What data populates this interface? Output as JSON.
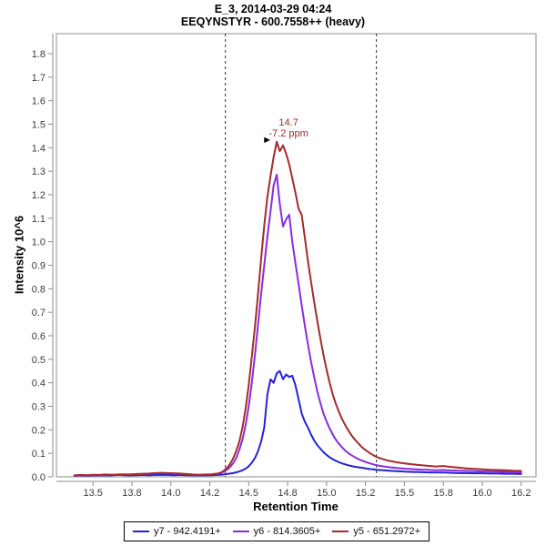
{
  "header": {
    "line1": "E_3, 2014-03-29 04:24",
    "line2": "EEQYNSTYR - 600.7558++ (heavy)"
  },
  "colors": {
    "frame": "#8d8d8d",
    "tick_text": "#3c3c3c",
    "boundary_line": "#303030",
    "legend_border": "#000000",
    "title_text": "#000000"
  },
  "chart_data": {
    "type": "line",
    "title": "E_3, 2014-03-29 04:24",
    "subtitle": "EEQYNSTYR - 600.7558++ (heavy)",
    "xlabel": "Retention Time",
    "ylabel": "Intensity 10^6",
    "xlim": [
      13.265,
      16.345
    ],
    "ylim": [
      0,
      1.885
    ],
    "grid": false,
    "legend_position": "bottom",
    "x_ticks": {
      "values": [
        13.5,
        13.75,
        14.0,
        14.25,
        14.5,
        14.75,
        15.0,
        15.25,
        15.5,
        15.75,
        16.0,
        16.25
      ],
      "labels": [
        "13.5",
        "13.8",
        "14.0",
        "14.2",
        "14.5",
        "14.8",
        "15.0",
        "15.2",
        "15.5",
        "15.8",
        "16.0",
        "16.2"
      ]
    },
    "y_ticks": {
      "values": [
        0.0,
        0.1,
        0.2,
        0.3,
        0.4,
        0.5,
        0.6,
        0.7,
        0.8,
        0.9,
        1.0,
        1.1,
        1.2,
        1.3,
        1.4,
        1.5,
        1.6,
        1.7,
        1.8
      ],
      "labels": [
        "0.0",
        "0.1",
        "0.2",
        "0.3",
        "0.4",
        "0.5",
        "0.6",
        "0.7",
        "0.8",
        "0.9",
        "1.0",
        "1.1",
        "1.2",
        "1.3",
        "1.4",
        "1.5",
        "1.6",
        "1.7",
        "1.8"
      ]
    },
    "integration_boundaries": [
      14.35,
      15.32
    ],
    "annotation": {
      "rt_label": "14.7",
      "ppm_label": "-7.2 ppm",
      "arrow_glyph": "►",
      "apex_rt": 14.68,
      "apex_intensity": 1.425,
      "color": "#A52A2A"
    },
    "x": [
      13.38,
      13.42,
      13.46,
      13.5,
      13.54,
      13.58,
      13.62,
      13.66,
      13.7,
      13.74,
      13.78,
      13.82,
      13.86,
      13.9,
      13.94,
      13.98,
      14.02,
      14.06,
      14.1,
      14.14,
      14.18,
      14.22,
      14.26,
      14.3,
      14.32,
      14.34,
      14.36,
      14.38,
      14.4,
      14.42,
      14.44,
      14.46,
      14.48,
      14.5,
      14.52,
      14.54,
      14.56,
      14.58,
      14.6,
      14.62,
      14.64,
      14.66,
      14.68,
      14.7,
      14.72,
      14.74,
      14.76,
      14.78,
      14.8,
      14.82,
      14.84,
      14.86,
      14.88,
      14.9,
      14.92,
      14.94,
      14.96,
      14.98,
      15.0,
      15.02,
      15.04,
      15.06,
      15.08,
      15.1,
      15.12,
      15.14,
      15.16,
      15.18,
      15.2,
      15.22,
      15.24,
      15.26,
      15.28,
      15.3,
      15.32,
      15.34,
      15.36,
      15.38,
      15.4,
      15.45,
      15.5,
      15.55,
      15.6,
      15.65,
      15.7,
      15.75,
      15.8,
      15.85,
      15.9,
      15.95,
      16.0,
      16.05,
      16.1,
      16.15,
      16.2,
      16.25
    ],
    "series": [
      {
        "id": "y7",
        "name": "y7 - 942.4191+",
        "color": "#2222DD",
        "values": [
          0.005,
          0.006,
          0.005,
          0.007,
          0.006,
          0.007,
          0.006,
          0.008,
          0.007,
          0.006,
          0.007,
          0.008,
          0.007,
          0.008,
          0.009,
          0.008,
          0.007,
          0.008,
          0.007,
          0.006,
          0.007,
          0.006,
          0.007,
          0.008,
          0.009,
          0.01,
          0.012,
          0.014,
          0.016,
          0.019,
          0.023,
          0.028,
          0.035,
          0.045,
          0.06,
          0.08,
          0.11,
          0.15,
          0.21,
          0.35,
          0.415,
          0.4,
          0.44,
          0.45,
          0.415,
          0.435,
          0.425,
          0.43,
          0.39,
          0.33,
          0.27,
          0.235,
          0.21,
          0.18,
          0.155,
          0.135,
          0.12,
          0.105,
          0.093,
          0.083,
          0.075,
          0.068,
          0.062,
          0.057,
          0.053,
          0.049,
          0.046,
          0.043,
          0.041,
          0.039,
          0.037,
          0.035,
          0.033,
          0.032,
          0.03,
          0.029,
          0.028,
          0.027,
          0.026,
          0.024,
          0.022,
          0.021,
          0.02,
          0.019,
          0.018,
          0.018,
          0.017,
          0.016,
          0.016,
          0.015,
          0.015,
          0.014,
          0.014,
          0.013,
          0.013,
          0.012
        ]
      },
      {
        "id": "y6",
        "name": "y6 - 814.3605+",
        "color": "#8A2BE2",
        "values": [
          0.005,
          0.006,
          0.006,
          0.007,
          0.007,
          0.008,
          0.008,
          0.009,
          0.009,
          0.01,
          0.011,
          0.012,
          0.013,
          0.015,
          0.016,
          0.015,
          0.014,
          0.013,
          0.011,
          0.009,
          0.008,
          0.009,
          0.01,
          0.012,
          0.016,
          0.022,
          0.03,
          0.042,
          0.058,
          0.08,
          0.115,
          0.16,
          0.22,
          0.3,
          0.4,
          0.52,
          0.65,
          0.78,
          0.9,
          1.02,
          1.13,
          1.24,
          1.285,
          1.16,
          1.065,
          1.095,
          1.115,
          1.0,
          0.91,
          0.82,
          0.73,
          0.645,
          0.565,
          0.49,
          0.425,
          0.365,
          0.315,
          0.27,
          0.235,
          0.205,
          0.18,
          0.158,
          0.14,
          0.125,
          0.112,
          0.101,
          0.092,
          0.084,
          0.077,
          0.071,
          0.066,
          0.061,
          0.057,
          0.053,
          0.05,
          0.047,
          0.045,
          0.043,
          0.041,
          0.038,
          0.035,
          0.033,
          0.031,
          0.03,
          0.028,
          0.029,
          0.027,
          0.026,
          0.025,
          0.024,
          0.023,
          0.022,
          0.022,
          0.021,
          0.02,
          0.019
        ]
      },
      {
        "id": "y5",
        "name": "y5 - 651.2972+",
        "color": "#A52A2A",
        "values": [
          0.006,
          0.008,
          0.007,
          0.009,
          0.008,
          0.01,
          0.009,
          0.01,
          0.011,
          0.01,
          0.012,
          0.013,
          0.014,
          0.016,
          0.017,
          0.016,
          0.015,
          0.014,
          0.012,
          0.01,
          0.009,
          0.01,
          0.011,
          0.014,
          0.018,
          0.026,
          0.038,
          0.055,
          0.078,
          0.11,
          0.15,
          0.21,
          0.29,
          0.39,
          0.51,
          0.64,
          0.78,
          0.93,
          1.07,
          1.19,
          1.28,
          1.36,
          1.425,
          1.385,
          1.41,
          1.375,
          1.33,
          1.27,
          1.21,
          1.14,
          1.115,
          1.02,
          0.92,
          0.83,
          0.745,
          0.665,
          0.59,
          0.52,
          0.455,
          0.4,
          0.35,
          0.31,
          0.275,
          0.245,
          0.22,
          0.197,
          0.177,
          0.16,
          0.145,
          0.131,
          0.119,
          0.109,
          0.1,
          0.092,
          0.085,
          0.08,
          0.076,
          0.072,
          0.068,
          0.062,
          0.057,
          0.053,
          0.05,
          0.047,
          0.044,
          0.046,
          0.042,
          0.039,
          0.036,
          0.034,
          0.032,
          0.03,
          0.029,
          0.028,
          0.026,
          0.025
        ]
      }
    ]
  }
}
